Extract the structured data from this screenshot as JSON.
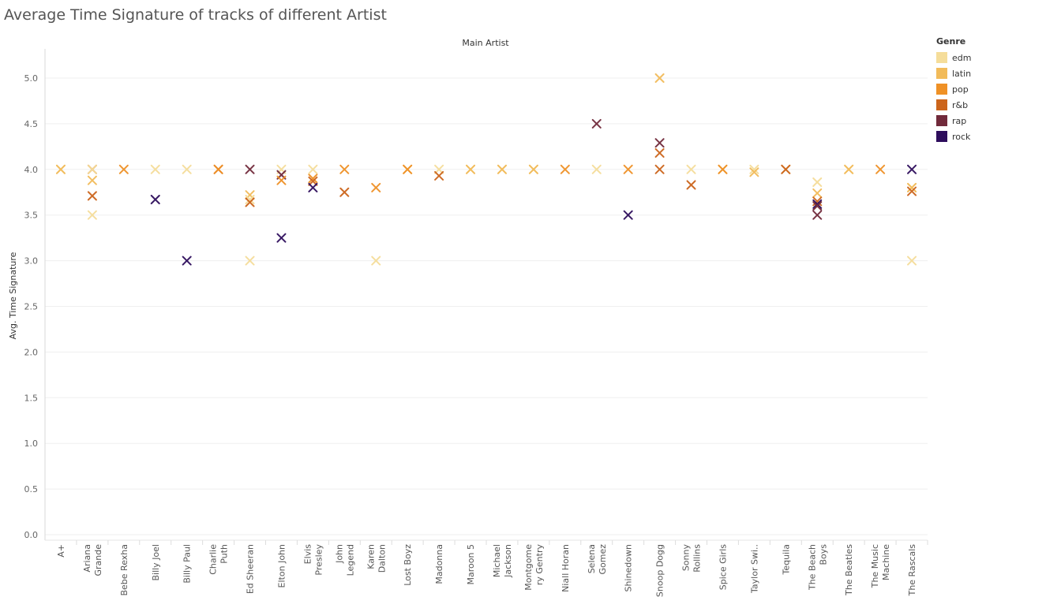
{
  "chart_data": {
    "type": "scatter",
    "title": "Average Time Signature of tracks of different Artist",
    "column_header": "Main Artist",
    "ylabel": "Avg. Time Signature",
    "ylim": [
      0,
      5.3
    ],
    "yticks": [
      "0.0",
      "0.5",
      "1.0",
      "1.5",
      "2.0",
      "2.5",
      "3.0",
      "3.5",
      "4.0",
      "4.5",
      "5.0"
    ],
    "marker": "x",
    "grid": true,
    "legend": {
      "title": "Genre",
      "placement": "right"
    },
    "genres": [
      {
        "name": "edm",
        "color": "#f5dd9a"
      },
      {
        "name": "latin",
        "color": "#f2bb5a"
      },
      {
        "name": "pop",
        "color": "#ef9126"
      },
      {
        "name": "r&b",
        "color": "#cc651c"
      },
      {
        "name": "rap",
        "color": "#712a3b"
      },
      {
        "name": "rock",
        "color": "#2e0d5c"
      }
    ],
    "artists": [
      {
        "lines": [
          "A+"
        ]
      },
      {
        "lines": [
          "Ariana",
          "Grande"
        ]
      },
      {
        "lines": [
          "Bebe Rexha"
        ]
      },
      {
        "lines": [
          "Billy Joel"
        ]
      },
      {
        "lines": [
          "Billy Paul"
        ]
      },
      {
        "lines": [
          "Charlie",
          "Puth"
        ]
      },
      {
        "lines": [
          "Ed Sheeran"
        ]
      },
      {
        "lines": [
          "Elton John"
        ]
      },
      {
        "lines": [
          "Elvis",
          "Presley"
        ]
      },
      {
        "lines": [
          "John",
          "Legend"
        ]
      },
      {
        "lines": [
          "Karen",
          "Dalton"
        ]
      },
      {
        "lines": [
          "Lost Boyz"
        ]
      },
      {
        "lines": [
          "Madonna"
        ]
      },
      {
        "lines": [
          "Maroon 5"
        ]
      },
      {
        "lines": [
          "Michael",
          "Jackson"
        ]
      },
      {
        "lines": [
          "Montgome",
          "ry Gentry"
        ]
      },
      {
        "lines": [
          "Niall Horan"
        ]
      },
      {
        "lines": [
          "Selena",
          "Gomez"
        ]
      },
      {
        "lines": [
          "Shinedown"
        ]
      },
      {
        "lines": [
          "Snoop Dogg"
        ]
      },
      {
        "lines": [
          "Sonny",
          "Rollins"
        ]
      },
      {
        "lines": [
          "Spice Girls"
        ]
      },
      {
        "lines": [
          "Taylor Swi.."
        ]
      },
      {
        "lines": [
          "Tequila"
        ]
      },
      {
        "lines": [
          "The Beach",
          "Boys"
        ]
      },
      {
        "lines": [
          "The Beatles"
        ]
      },
      {
        "lines": [
          "The Music",
          "Machine"
        ]
      },
      {
        "lines": [
          "The Rascals"
        ]
      }
    ],
    "points": [
      {
        "artist": 0,
        "genre": "edm",
        "y": 4.0
      },
      {
        "artist": 0,
        "genre": "latin",
        "y": 4.0
      },
      {
        "artist": 1,
        "genre": "edm",
        "y": 3.5
      },
      {
        "artist": 1,
        "genre": "latin",
        "y": 3.88
      },
      {
        "artist": 1,
        "genre": "r&b",
        "y": 3.71
      },
      {
        "artist": 1,
        "genre": "r&b",
        "y": 4.0
      },
      {
        "artist": 1,
        "genre": "edm",
        "y": 4.0
      },
      {
        "artist": 2,
        "genre": "pop",
        "y": 4.0
      },
      {
        "artist": 3,
        "genre": "edm",
        "y": 4.0
      },
      {
        "artist": 3,
        "genre": "rock",
        "y": 3.67
      },
      {
        "artist": 4,
        "genre": "edm",
        "y": 4.0
      },
      {
        "artist": 4,
        "genre": "rock",
        "y": 3.0
      },
      {
        "artist": 5,
        "genre": "r&b",
        "y": 4.0
      },
      {
        "artist": 5,
        "genre": "pop",
        "y": 4.0
      },
      {
        "artist": 6,
        "genre": "rap",
        "y": 4.0
      },
      {
        "artist": 6,
        "genre": "latin",
        "y": 3.72
      },
      {
        "artist": 6,
        "genre": "edm",
        "y": 3.67
      },
      {
        "artist": 6,
        "genre": "r&b",
        "y": 3.64
      },
      {
        "artist": 6,
        "genre": "edm",
        "y": 3.0
      },
      {
        "artist": 7,
        "genre": "edm",
        "y": 4.0
      },
      {
        "artist": 7,
        "genre": "rap",
        "y": 3.94
      },
      {
        "artist": 7,
        "genre": "pop",
        "y": 3.88
      },
      {
        "artist": 7,
        "genre": "rock",
        "y": 3.25
      },
      {
        "artist": 8,
        "genre": "edm",
        "y": 4.0
      },
      {
        "artist": 8,
        "genre": "pop",
        "y": 3.9
      },
      {
        "artist": 8,
        "genre": "r&b",
        "y": 3.87
      },
      {
        "artist": 8,
        "genre": "rock",
        "y": 3.8
      },
      {
        "artist": 9,
        "genre": "pop",
        "y": 4.0
      },
      {
        "artist": 9,
        "genre": "r&b",
        "y": 3.75
      },
      {
        "artist": 10,
        "genre": "pop",
        "y": 3.8
      },
      {
        "artist": 10,
        "genre": "edm",
        "y": 3.0
      },
      {
        "artist": 11,
        "genre": "latin",
        "y": 4.0
      },
      {
        "artist": 11,
        "genre": "pop",
        "y": 4.0
      },
      {
        "artist": 12,
        "genre": "edm",
        "y": 4.0
      },
      {
        "artist": 12,
        "genre": "r&b",
        "y": 3.93
      },
      {
        "artist": 13,
        "genre": "edm",
        "y": 4.0
      },
      {
        "artist": 13,
        "genre": "latin",
        "y": 4.0
      },
      {
        "artist": 14,
        "genre": "edm",
        "y": 4.0
      },
      {
        "artist": 14,
        "genre": "latin",
        "y": 4.0
      },
      {
        "artist": 15,
        "genre": "edm",
        "y": 4.0
      },
      {
        "artist": 15,
        "genre": "latin",
        "y": 4.0
      },
      {
        "artist": 16,
        "genre": "pop",
        "y": 4.0
      },
      {
        "artist": 17,
        "genre": "edm",
        "y": 4.0
      },
      {
        "artist": 17,
        "genre": "rap",
        "y": 4.5
      },
      {
        "artist": 18,
        "genre": "pop",
        "y": 4.0
      },
      {
        "artist": 18,
        "genre": "rock",
        "y": 3.5
      },
      {
        "artist": 19,
        "genre": "latin",
        "y": 5.0
      },
      {
        "artist": 19,
        "genre": "rap",
        "y": 4.29
      },
      {
        "artist": 19,
        "genre": "r&b",
        "y": 4.18
      },
      {
        "artist": 19,
        "genre": "r&b",
        "y": 4.0
      },
      {
        "artist": 20,
        "genre": "edm",
        "y": 4.0
      },
      {
        "artist": 20,
        "genre": "r&b",
        "y": 3.83
      },
      {
        "artist": 21,
        "genre": "latin",
        "y": 4.0
      },
      {
        "artist": 21,
        "genre": "pop",
        "y": 4.0
      },
      {
        "artist": 22,
        "genre": "edm",
        "y": 4.0
      },
      {
        "artist": 22,
        "genre": "latin",
        "y": 3.97
      },
      {
        "artist": 23,
        "genre": "latin",
        "y": 4.0
      },
      {
        "artist": 23,
        "genre": "r&b",
        "y": 4.0
      },
      {
        "artist": 24,
        "genre": "edm",
        "y": 3.86
      },
      {
        "artist": 24,
        "genre": "latin",
        "y": 3.74
      },
      {
        "artist": 24,
        "genre": "r&b",
        "y": 3.65
      },
      {
        "artist": 24,
        "genre": "rock",
        "y": 3.62
      },
      {
        "artist": 24,
        "genre": "rap",
        "y": 3.6
      },
      {
        "artist": 24,
        "genre": "rap",
        "y": 3.5
      },
      {
        "artist": 25,
        "genre": "edm",
        "y": 4.0
      },
      {
        "artist": 25,
        "genre": "latin",
        "y": 4.0
      },
      {
        "artist": 26,
        "genre": "pop",
        "y": 4.0
      },
      {
        "artist": 27,
        "genre": "rock",
        "y": 4.0
      },
      {
        "artist": 27,
        "genre": "edm",
        "y": 3.8
      },
      {
        "artist": 27,
        "genre": "latin",
        "y": 3.8
      },
      {
        "artist": 27,
        "genre": "r&b",
        "y": 3.76
      },
      {
        "artist": 27,
        "genre": "edm",
        "y": 3.0
      }
    ]
  }
}
